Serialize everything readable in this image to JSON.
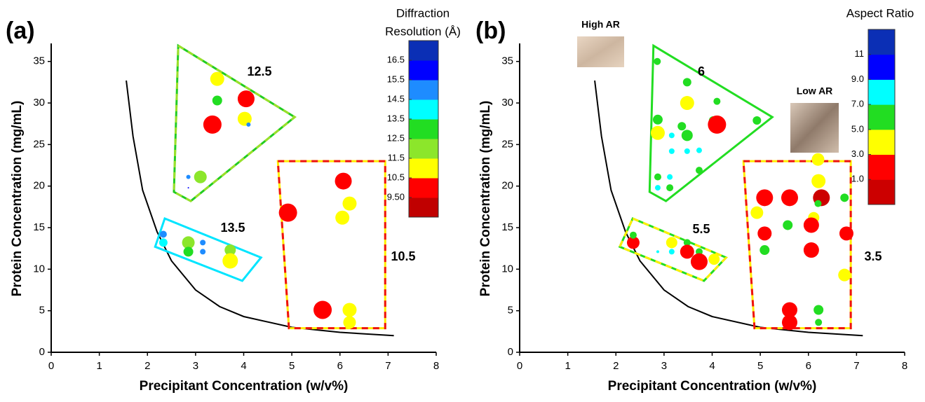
{
  "chart_data": [
    {
      "type": "scatter",
      "panel_label": "(a)",
      "xlabel": "Precipitant Concentration (w/v%)",
      "ylabel": "Protein Concentration (mg/mL)",
      "xlim": [
        0,
        8
      ],
      "ylim": [
        0,
        37
      ],
      "xticks": [
        0,
        1,
        2,
        3,
        4,
        5,
        6,
        7,
        8
      ],
      "yticks": [
        0,
        5,
        10,
        15,
        20,
        25,
        30,
        35
      ],
      "colorbar": {
        "title": [
          "Diffraction",
          "Resolution (Å)"
        ],
        "lim": [
          8.5,
          17.5
        ],
        "colors": [
          "#c00000",
          "#ff0000",
          "#ffff00",
          "#8ce62b",
          "#22dd22",
          "#00ffff",
          "#1e8cff",
          "#0000ff",
          "#0b2fb5"
        ],
        "ticks": [
          {
            "value": 9.5,
            "label": "9.50"
          },
          10.5,
          11.5,
          12.5,
          13.5,
          14.5,
          15.5,
          16.5
        ]
      },
      "points": {
        "x": [
          3.45,
          4.05,
          3.45,
          4.02,
          4.1,
          3.35,
          2.85,
          2.85,
          3.1,
          2.33,
          2.33,
          2.85,
          2.85,
          3.15,
          3.15,
          3.72,
          3.72,
          4.92,
          6.07,
          6.2,
          6.05,
          5.64,
          6.2,
          6.2
        ],
        "y": [
          32.9,
          30.5,
          30.3,
          28.1,
          27.4,
          27.4,
          21.1,
          19.8,
          21.1,
          14.2,
          13.2,
          13.2,
          12.1,
          13.2,
          12.1,
          12.3,
          11.0,
          16.8,
          20.6,
          17.9,
          16.2,
          5.1,
          5.1,
          3.6
        ],
        "sizes": [
          10,
          12,
          7,
          10,
          3,
          13,
          3,
          1,
          9,
          5,
          6,
          9,
          7,
          4,
          4,
          8,
          11,
          13,
          12,
          10,
          10,
          13,
          10,
          9
        ],
        "z": [
          11,
          10,
          13,
          11,
          15,
          10,
          15,
          16,
          12,
          15,
          14,
          12,
          13,
          15,
          15,
          12,
          11,
          10,
          10,
          11,
          11,
          10,
          11,
          11
        ]
      },
      "curve": {
        "color": "#000000",
        "x": [
          1.56,
          1.7,
          1.9,
          2.2,
          2.5,
          3,
          3.5,
          4,
          5,
          6,
          7.12
        ],
        "y": [
          32.7,
          26,
          19.5,
          14.5,
          11,
          7.5,
          5.5,
          4.3,
          3,
          2.4,
          2.0
        ]
      },
      "regions": [
        {
          "label": "12.5",
          "x": [
            2.64,
            5.06,
            2.9,
            2.55
          ],
          "y": [
            36.9,
            28.3,
            18.2,
            19.3
          ],
          "color": "#22cc22",
          "dash_color": "#9be02a"
        },
        {
          "label": "13.5",
          "x": [
            2.36,
            4.36,
            3.97,
            2.16
          ],
          "y": [
            16.1,
            11.4,
            8.6,
            12.7
          ],
          "color": "#00e5ff"
        },
        {
          "label": "10.5",
          "x": [
            4.71,
            6.94,
            6.94,
            4.94
          ],
          "y": [
            23.0,
            23.0,
            2.9,
            2.9
          ],
          "color": "#ffee00",
          "dash_color": "#ee1111"
        }
      ]
    },
    {
      "type": "scatter",
      "panel_label": "(b)",
      "xlabel": "Precipitant Concentration (w/v%)",
      "ylabel": "Protein Concentration (mg/mL)",
      "xlim": [
        0,
        8
      ],
      "ylim": [
        0,
        37
      ],
      "xticks": [
        0,
        1,
        2,
        3,
        4,
        5,
        6,
        7,
        8
      ],
      "yticks": [
        0,
        5,
        10,
        15,
        20,
        25,
        30,
        35
      ],
      "colorbar": {
        "title": [
          "Aspect Ratio"
        ],
        "lim": [
          -1,
          13
        ],
        "colors": [
          "#cc0000",
          "#ff0000",
          "#ffff00",
          "#22dd22",
          "#00ffff",
          "#0000ff",
          "#0b2fb5"
        ],
        "ticks": [
          {
            "value": 1,
            "label": "1.0"
          },
          {
            "value": 3,
            "label": "3.0"
          },
          {
            "value": 5,
            "label": "5.0"
          },
          {
            "value": 7,
            "label": "7.0"
          },
          {
            "value": 9,
            "label": "9.0"
          },
          11
        ]
      },
      "points": {
        "x": [
          2.86,
          3.48,
          4.1,
          3.48,
          2.87,
          3.37,
          3.48,
          2.87,
          3.16,
          4.02,
          4.1,
          4.93,
          3.16,
          3.48,
          3.73,
          3.73,
          2.87,
          3.12,
          2.87,
          3.12,
          2.36,
          2.36,
          2.87,
          3.16,
          3.16,
          3.48,
          3.48,
          3.73,
          3.73,
          4.04,
          5.09,
          4.93,
          5.61,
          6.21,
          6.2,
          6.27,
          6.2,
          6.75,
          6.11,
          6.06,
          5.57,
          5.09,
          6.79,
          5.09,
          6.06,
          6.75,
          5.61,
          5.61,
          6.21,
          6.21
        ],
        "y": [
          35.0,
          32.5,
          30.2,
          30.0,
          28.0,
          27.2,
          26.1,
          26.4,
          26.1,
          27.9,
          27.4,
          27.9,
          24.2,
          24.2,
          24.3,
          21.9,
          21.1,
          21.1,
          19.8,
          19.8,
          13.2,
          14.1,
          12.1,
          12.1,
          13.2,
          13.2,
          12.1,
          12.1,
          10.9,
          11.2,
          18.6,
          16.8,
          18.6,
          20.6,
          23.2,
          18.6,
          17.9,
          18.6,
          16.2,
          15.3,
          15.3,
          14.3,
          14.3,
          12.3,
          12.3,
          9.3,
          5.1,
          3.6,
          5.1,
          3.6
        ],
        "sizes": [
          5,
          6,
          5,
          10,
          7,
          6,
          8,
          10,
          4,
          6,
          13,
          6,
          4,
          4,
          4,
          5,
          5,
          4,
          4,
          5,
          9,
          5,
          2,
          4,
          8,
          5,
          10,
          5,
          12,
          8,
          12,
          9,
          12,
          10,
          9,
          12,
          5,
          6,
          8,
          11,
          7,
          10,
          10,
          7,
          11,
          9,
          11,
          11,
          7,
          5
        ],
        "z": [
          6,
          6,
          6,
          4,
          6,
          6,
          6,
          4,
          8,
          6,
          2,
          6,
          8,
          8,
          8,
          6,
          6,
          8,
          8,
          6,
          2,
          6,
          8,
          8,
          4,
          6,
          2,
          6,
          2,
          4,
          2,
          4,
          2,
          4,
          4,
          0,
          6,
          6,
          4,
          2,
          6,
          2,
          2,
          6,
          2,
          4,
          2,
          2,
          6,
          6
        ]
      },
      "curve": {
        "color": "#000000",
        "x": [
          1.56,
          1.7,
          1.9,
          2.2,
          2.5,
          3,
          3.5,
          4,
          5,
          6,
          7.13
        ],
        "y": [
          32.7,
          26,
          19.5,
          14.5,
          11,
          7.5,
          5.5,
          4.3,
          3,
          2.4,
          2.0
        ]
      },
      "regions": [
        {
          "label": "6",
          "x": [
            2.78,
            5.25,
            3.04,
            2.7
          ],
          "y": [
            36.9,
            28.3,
            18.2,
            19.3
          ],
          "color": "#22dd22"
        },
        {
          "label": "5.5",
          "x": [
            2.35,
            4.29,
            3.83,
            2.08
          ],
          "y": [
            16.1,
            11.4,
            8.6,
            12.7
          ],
          "color": "#22dd22",
          "dash_color": "#ffee00"
        },
        {
          "label": "3.5",
          "x": [
            4.65,
            6.88,
            6.88,
            4.88
          ],
          "y": [
            23.0,
            23.0,
            2.9,
            2.9
          ],
          "color": "#ffee00",
          "dash_color": "#ee1111"
        }
      ],
      "insets": [
        {
          "label": "High AR"
        },
        {
          "label": "Low AR"
        }
      ]
    }
  ]
}
